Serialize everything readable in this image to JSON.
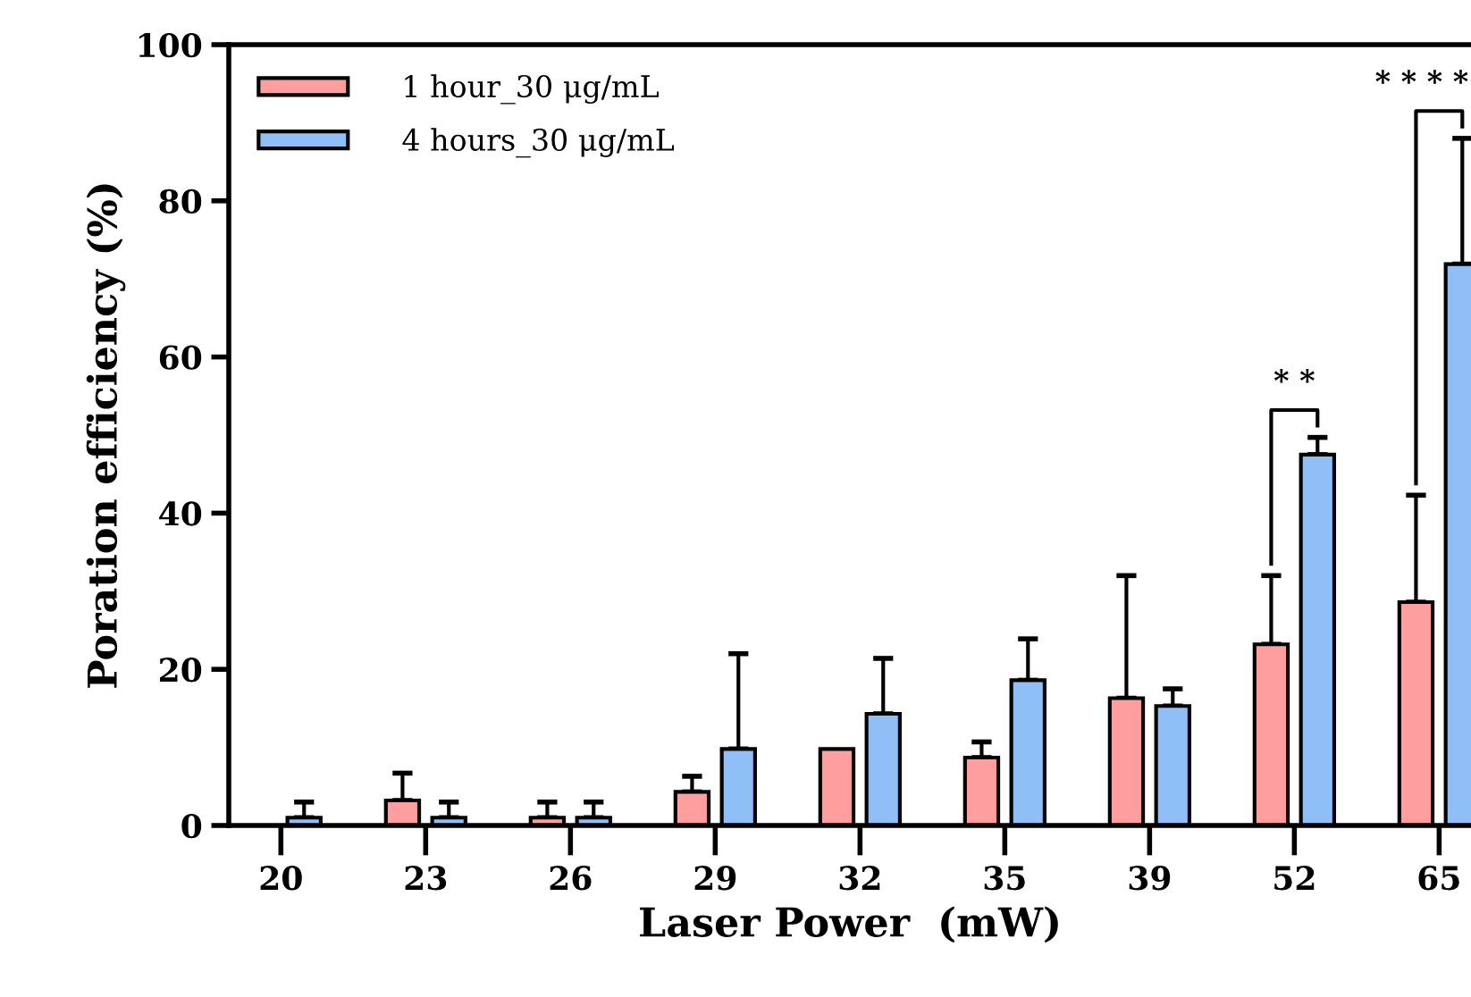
{
  "chart_data": {
    "type": "bar",
    "xlabel": "Laser Power  (mW)",
    "ylabel": "Poration efficiency (%)",
    "categories": [
      "20",
      "23",
      "26",
      "29",
      "32",
      "35",
      "39",
      "52",
      "65"
    ],
    "series": [
      {
        "name": "1 hour_30 μg/mL",
        "color": "#ff9e9e",
        "values": [
          0,
          3.2,
          1,
          4.3,
          9.8,
          8.7,
          16.3,
          23.2,
          28.6
        ],
        "errors": [
          null,
          3.5,
          2,
          2,
          null,
          2,
          15.7,
          8.8,
          13.7
        ]
      },
      {
        "name": "4 hours_30 μg/mL",
        "color": "#90bff8",
        "values": [
          1,
          1,
          1,
          9.8,
          14.3,
          18.6,
          15.3,
          47.5,
          71.9
        ],
        "errors": [
          2,
          2,
          2,
          12.2,
          7.1,
          5.3,
          2.2,
          2.2,
          16.1
        ]
      }
    ],
    "ylim": [
      0,
      100
    ],
    "yticks": [
      0,
      20,
      40,
      60,
      80,
      100
    ],
    "grid": false,
    "legend": "top left",
    "annotations": [
      "* *",
      "* * * *"
    ]
  }
}
